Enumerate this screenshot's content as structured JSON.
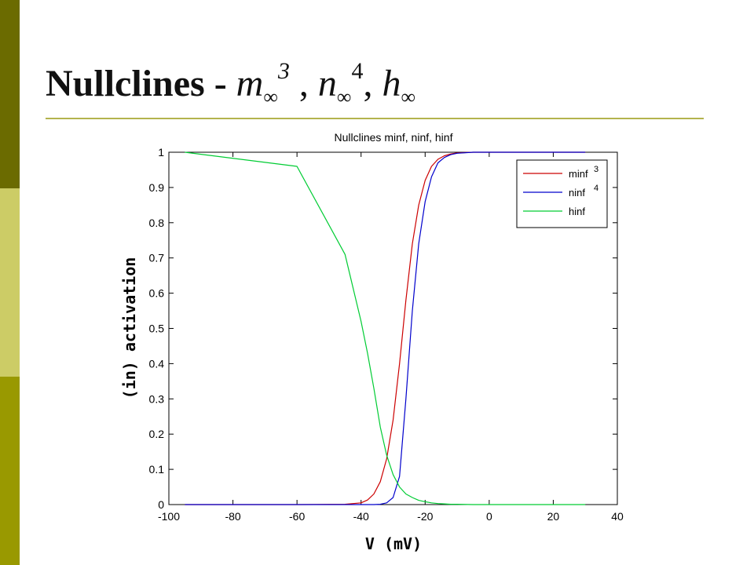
{
  "slide": {
    "title_main": "Nullclines - ",
    "title_m": "m",
    "title_n": "n",
    "title_h": "h",
    "title_inf": "∞",
    "title_exp_m": "3",
    "title_exp_n": "4",
    "title_sep1": " , ",
    "title_sep2": ", ",
    "colors": {
      "sidebar_top": "#6b6b00",
      "sidebar_mid": "#cccc66",
      "sidebar_bottom": "#999900",
      "rule": "#b3b34d"
    }
  },
  "chart_data": {
    "type": "line",
    "title": "Nullclines minf, ninf, hinf",
    "xlabel": "V (mV)",
    "ylabel": "(in) activation",
    "xlim": [
      -100,
      40
    ],
    "ylim": [
      0,
      1
    ],
    "xticks": [
      -100,
      -80,
      -60,
      -40,
      -20,
      0,
      20,
      40
    ],
    "yticks": [
      0,
      0.1,
      0.2,
      0.3,
      0.4,
      0.5,
      0.6,
      0.7,
      0.8,
      0.9,
      1
    ],
    "grid": false,
    "legend_position": "top-right",
    "x": [
      -95,
      -60,
      -45,
      -40,
      -38,
      -36,
      -34,
      -32,
      -30,
      -28,
      -26,
      -24,
      -22,
      -20,
      -18,
      -16,
      -14,
      -12,
      -10,
      -5,
      0,
      30
    ],
    "series": [
      {
        "name": "minf",
        "exponent": "3",
        "color": "#cc0000",
        "values": [
          0,
          0,
          0.001,
          0.005,
          0.013,
          0.03,
          0.065,
          0.13,
          0.24,
          0.4,
          0.58,
          0.74,
          0.85,
          0.92,
          0.96,
          0.98,
          0.99,
          0.995,
          0.998,
          1,
          1,
          1
        ]
      },
      {
        "name": "ninf",
        "exponent": "4",
        "color": "#0000cc",
        "values": [
          0,
          0,
          0,
          0,
          0,
          0,
          0.001,
          0.005,
          0.02,
          0.08,
          0.3,
          0.55,
          0.74,
          0.86,
          0.93,
          0.97,
          0.985,
          0.993,
          0.997,
          1,
          1,
          1
        ]
      },
      {
        "name": "hinf",
        "exponent": "",
        "color": "#00cc33",
        "values": [
          1,
          0.96,
          0.71,
          0.52,
          0.43,
          0.33,
          0.22,
          0.14,
          0.085,
          0.05,
          0.03,
          0.02,
          0.012,
          0.008,
          0.005,
          0.003,
          0.002,
          0.001,
          0.001,
          0,
          0,
          0
        ]
      }
    ]
  }
}
